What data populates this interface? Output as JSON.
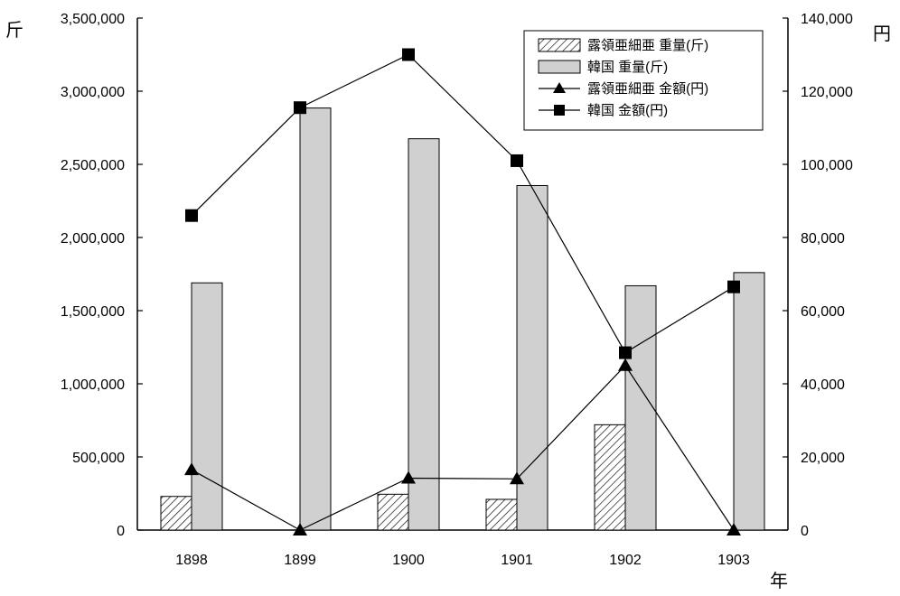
{
  "chart_data": {
    "type": "bar",
    "categories": [
      "1898",
      "1899",
      "1900",
      "1901",
      "1902",
      "1903"
    ],
    "left_axis": {
      "unit_label": "斤",
      "ylim": [
        0,
        3500000
      ],
      "ticks": [
        0,
        500000,
        1000000,
        1500000,
        2000000,
        2500000,
        3000000,
        3500000
      ],
      "tick_labels": [
        "0",
        "500,000",
        "1,000,000",
        "1,500,000",
        "2,000,000",
        "2,500,000",
        "3,000,000",
        "3,500,000"
      ]
    },
    "right_axis": {
      "unit_label": "円",
      "ylim": [
        0,
        140000
      ],
      "ticks": [
        0,
        20000,
        40000,
        60000,
        80000,
        100000,
        120000,
        140000
      ],
      "tick_labels": [
        "0",
        "20,000",
        "40,000",
        "60,000",
        "80,000",
        "100,000",
        "120,000",
        "140,000"
      ]
    },
    "x_unit_label": "年",
    "series": [
      {
        "name": "露領亜細亜 重量(斤)",
        "kind": "bar",
        "axis": "left",
        "pattern": "hatched",
        "values": [
          230000,
          0,
          245000,
          210000,
          720000,
          0
        ]
      },
      {
        "name": "韓国 重量(斤)",
        "kind": "bar",
        "axis": "left",
        "color": "#d0d0d0",
        "values": [
          1690000,
          2885000,
          2675000,
          2355000,
          1670000,
          1760000
        ]
      },
      {
        "name": "露領亜細亜 金額(円)",
        "kind": "line",
        "axis": "right",
        "marker": "triangle",
        "values": [
          16500,
          0,
          14200,
          14000,
          45000,
          0
        ]
      },
      {
        "name": "韓国 金額(円)",
        "kind": "line",
        "axis": "right",
        "marker": "square",
        "values": [
          86000,
          115500,
          130000,
          101000,
          48500,
          66500
        ]
      }
    ],
    "grid": false,
    "legend_position": "top-right"
  }
}
